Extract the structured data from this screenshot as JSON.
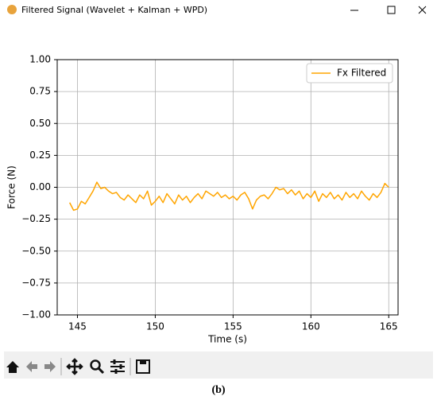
{
  "window": {
    "title": "Filtered Signal (Wavelet + Kalman + WPD)"
  },
  "chart_data": {
    "type": "line",
    "xlabel": "Time (s)",
    "ylabel": "Force (N)",
    "x": [
      144.5,
      144.75,
      145,
      145.25,
      145.5,
      145.75,
      146,
      146.25,
      146.5,
      146.75,
      147,
      147.25,
      147.5,
      147.75,
      148,
      148.25,
      148.5,
      148.75,
      149,
      149.25,
      149.5,
      149.75,
      150,
      150.25,
      150.5,
      150.75,
      151,
      151.25,
      151.5,
      151.75,
      152,
      152.25,
      152.5,
      152.75,
      153,
      153.25,
      153.5,
      153.75,
      154,
      154.25,
      154.5,
      154.75,
      155,
      155.25,
      155.5,
      155.75,
      156,
      156.25,
      156.5,
      156.75,
      157,
      157.25,
      157.5,
      157.75,
      158,
      158.25,
      158.5,
      158.75,
      159,
      159.25,
      159.5,
      159.75,
      160,
      160.25,
      160.5,
      160.75,
      161,
      161.25,
      161.5,
      161.75,
      162,
      162.25,
      162.5,
      162.75,
      163,
      163.25,
      163.5,
      163.75,
      164,
      164.25,
      164.5,
      164.75,
      165
    ],
    "series": [
      {
        "name": "Fx Filtered",
        "color": "#ffa500",
        "values": [
          -0.12,
          -0.18,
          -0.17,
          -0.11,
          -0.13,
          -0.08,
          -0.03,
          0.04,
          -0.01,
          0.0,
          -0.03,
          -0.05,
          -0.04,
          -0.08,
          -0.1,
          -0.06,
          -0.09,
          -0.12,
          -0.06,
          -0.09,
          -0.03,
          -0.14,
          -0.11,
          -0.07,
          -0.12,
          -0.05,
          -0.09,
          -0.13,
          -0.06,
          -0.1,
          -0.07,
          -0.12,
          -0.08,
          -0.05,
          -0.09,
          -0.03,
          -0.05,
          -0.07,
          -0.04,
          -0.08,
          -0.06,
          -0.09,
          -0.07,
          -0.1,
          -0.06,
          -0.04,
          -0.09,
          -0.17,
          -0.1,
          -0.07,
          -0.06,
          -0.09,
          -0.05,
          0.0,
          -0.02,
          -0.01,
          -0.05,
          -0.02,
          -0.06,
          -0.03,
          -0.09,
          -0.05,
          -0.08,
          -0.03,
          -0.11,
          -0.05,
          -0.08,
          -0.04,
          -0.09,
          -0.06,
          -0.1,
          -0.04,
          -0.08,
          -0.05,
          -0.09,
          -0.03,
          -0.07,
          -0.1,
          -0.05,
          -0.08,
          -0.04,
          0.03,
          0.0
        ]
      }
    ],
    "xlim": [
      143.7,
      165.6
    ],
    "xticks": [
      145,
      150,
      155,
      160,
      165
    ],
    "ylim": [
      -1,
      1
    ],
    "yticks": [
      {
        "value": -1,
        "label": "−1.00"
      },
      {
        "value": -0.75,
        "label": "−0.75"
      },
      {
        "value": -0.5,
        "label": "−0.50"
      },
      {
        "value": -0.25,
        "label": "−0.25"
      },
      {
        "value": 0,
        "label": "0.00"
      },
      {
        "value": 0.25,
        "label": "0.25"
      },
      {
        "value": 0.5,
        "label": "0.50"
      },
      {
        "value": 0.75,
        "label": "0.75"
      },
      {
        "value": 1,
        "label": "1.00"
      }
    ],
    "grid": true,
    "legend": "upper right"
  },
  "caption": "(b)"
}
